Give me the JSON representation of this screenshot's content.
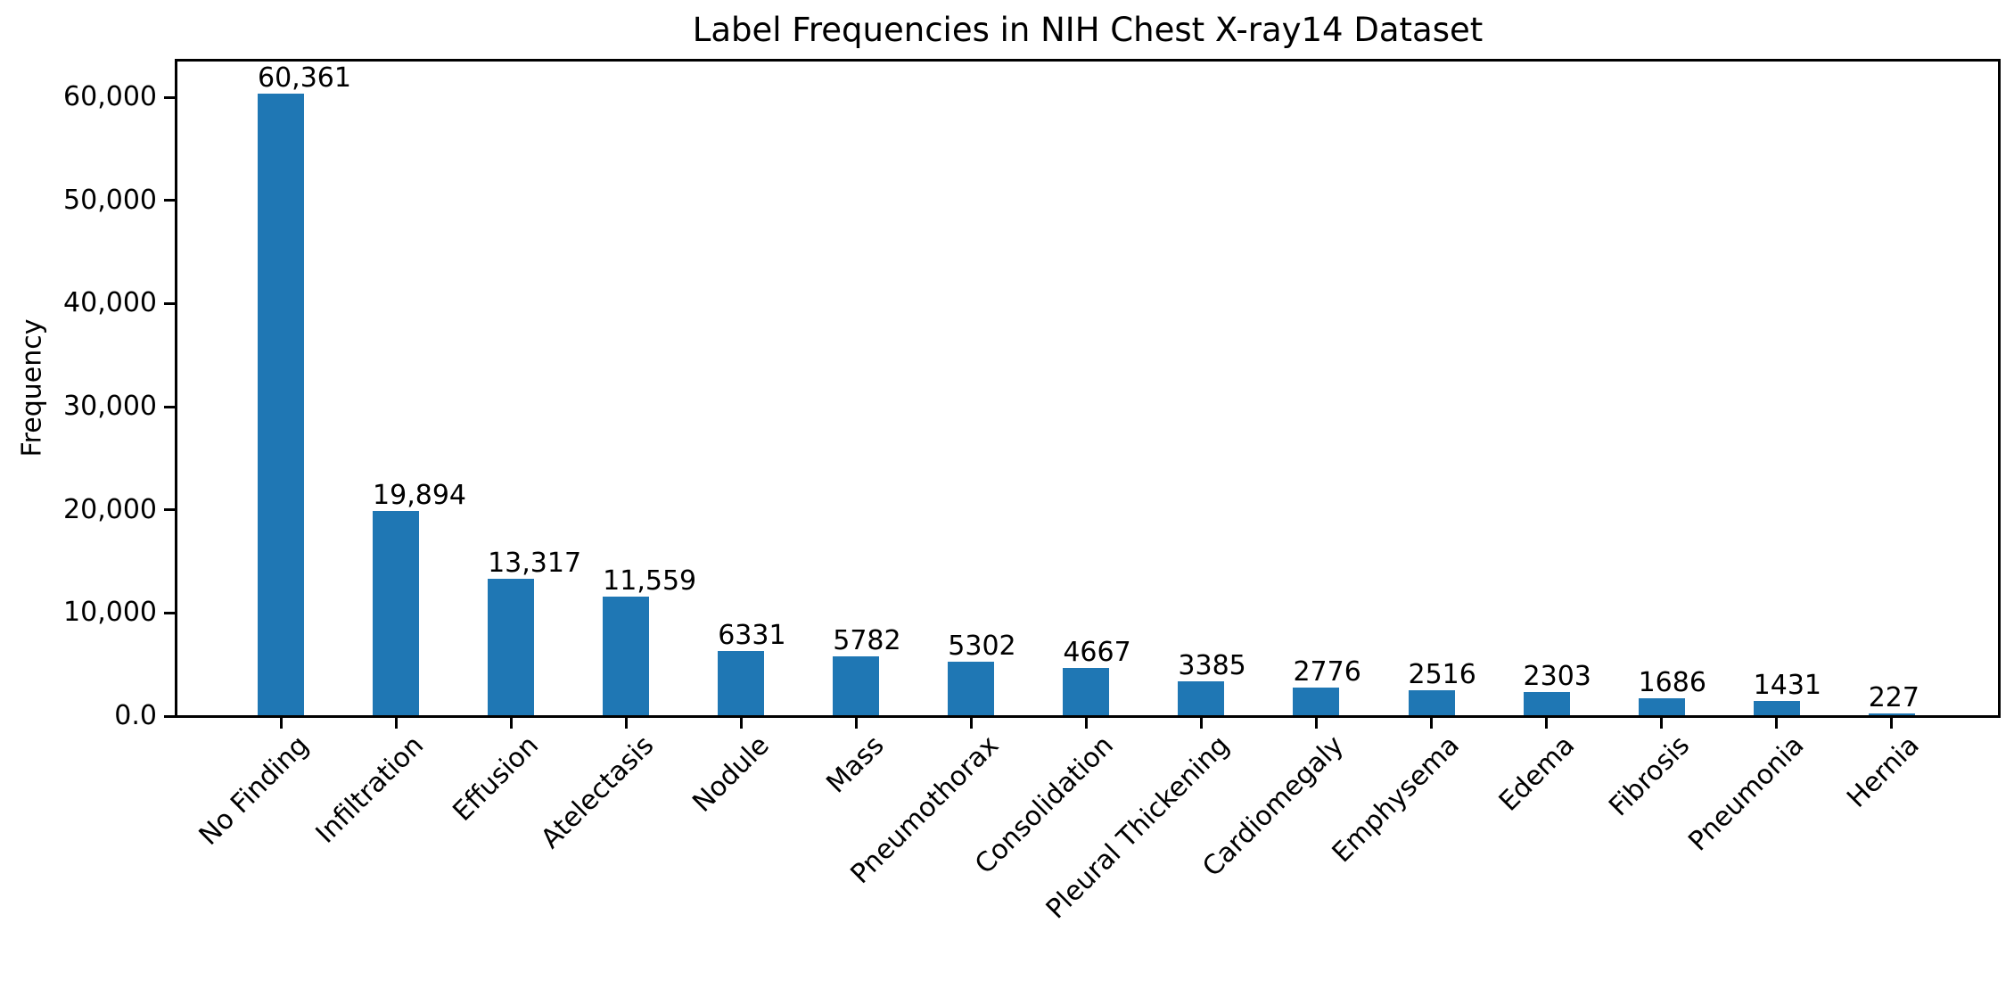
{
  "chart_data": {
    "type": "bar",
    "title": "Label Frequencies in NIH Chest X-ray14 Dataset",
    "xlabel": "",
    "ylabel": "Frequency",
    "categories": [
      "No Finding",
      "Infiltration",
      "Effusion",
      "Atelectasis",
      "Nodule",
      "Mass",
      "Pneumothorax",
      "Consolidation",
      "Pleural Thickening",
      "Cardiomegaly",
      "Emphysema",
      "Edema",
      "Fibrosis",
      "Pneumonia",
      "Hernia"
    ],
    "values": [
      60361,
      19894,
      13317,
      11559,
      6331,
      5782,
      5302,
      4667,
      3385,
      2776,
      2516,
      2303,
      1686,
      1431,
      227
    ],
    "bar_value_labels": [
      "60,361",
      "19,894",
      "13,317",
      "11,559",
      "6331",
      "5782",
      "5302",
      "4667",
      "3385",
      "2776",
      "2516",
      "2303",
      "1686",
      "1431",
      "227"
    ],
    "yticks": {
      "values": [
        0,
        10000,
        20000,
        30000,
        40000,
        50000,
        60000
      ],
      "labels": [
        "0.0",
        "10,000",
        "20,000",
        "30,000",
        "40,000",
        "50,000",
        "60,000"
      ]
    },
    "ylim": [
      0,
      63630
    ],
    "x_tick_label_rotation": 45,
    "grid": false,
    "legend": null,
    "bar_color": "#1f77b4",
    "axis_color": "#000000",
    "text_color": "#000000",
    "background_color": "#ffffff"
  }
}
